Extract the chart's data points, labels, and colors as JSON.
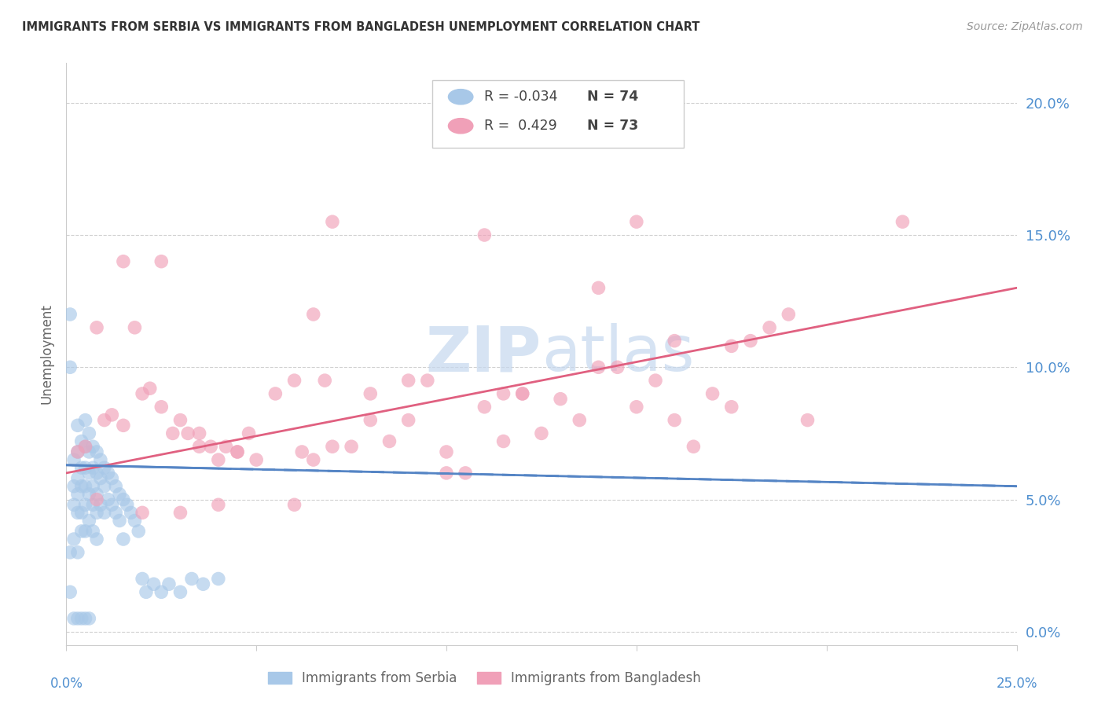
{
  "title": "IMMIGRANTS FROM SERBIA VS IMMIGRANTS FROM BANGLADESH UNEMPLOYMENT CORRELATION CHART",
  "source": "Source: ZipAtlas.com",
  "ylabel": "Unemployment",
  "yticks": [
    0.0,
    0.05,
    0.1,
    0.15,
    0.2
  ],
  "ytick_labels": [
    "0.0%",
    "5.0%",
    "10.0%",
    "15.0%",
    "20.0%"
  ],
  "xlim": [
    0.0,
    0.25
  ],
  "ylim": [
    -0.005,
    0.215
  ],
  "serbia_color": "#a8c8e8",
  "bangladesh_color": "#f0a0b8",
  "serbia_line_color": "#5585c5",
  "bangladesh_line_color": "#e06080",
  "watermark_color": "#c5d8ee",
  "legend_R_serbia": "-0.034",
  "legend_N_serbia": "74",
  "legend_R_bangladesh": "0.429",
  "legend_N_bangladesh": "73",
  "serbia_scatter_x": [
    0.001,
    0.001,
    0.001,
    0.002,
    0.002,
    0.002,
    0.002,
    0.003,
    0.003,
    0.003,
    0.003,
    0.003,
    0.003,
    0.004,
    0.004,
    0.004,
    0.004,
    0.004,
    0.005,
    0.005,
    0.005,
    0.005,
    0.005,
    0.005,
    0.006,
    0.006,
    0.006,
    0.006,
    0.006,
    0.007,
    0.007,
    0.007,
    0.007,
    0.007,
    0.008,
    0.008,
    0.008,
    0.008,
    0.008,
    0.009,
    0.009,
    0.009,
    0.01,
    0.01,
    0.01,
    0.011,
    0.011,
    0.012,
    0.012,
    0.013,
    0.013,
    0.014,
    0.014,
    0.015,
    0.015,
    0.016,
    0.017,
    0.018,
    0.019,
    0.02,
    0.021,
    0.023,
    0.025,
    0.027,
    0.03,
    0.033,
    0.036,
    0.04,
    0.001,
    0.002,
    0.003,
    0.004,
    0.005,
    0.006
  ],
  "serbia_scatter_y": [
    0.12,
    0.1,
    0.03,
    0.065,
    0.055,
    0.048,
    0.035,
    0.078,
    0.068,
    0.058,
    0.052,
    0.045,
    0.03,
    0.072,
    0.062,
    0.055,
    0.045,
    0.038,
    0.08,
    0.07,
    0.062,
    0.055,
    0.048,
    0.038,
    0.075,
    0.068,
    0.06,
    0.052,
    0.042,
    0.07,
    0.062,
    0.055,
    0.048,
    0.038,
    0.068,
    0.06,
    0.052,
    0.045,
    0.035,
    0.065,
    0.058,
    0.048,
    0.062,
    0.055,
    0.045,
    0.06,
    0.05,
    0.058,
    0.048,
    0.055,
    0.045,
    0.052,
    0.042,
    0.05,
    0.035,
    0.048,
    0.045,
    0.042,
    0.038,
    0.02,
    0.015,
    0.018,
    0.015,
    0.018,
    0.015,
    0.02,
    0.018,
    0.02,
    0.015,
    0.005,
    0.005,
    0.005,
    0.005,
    0.005
  ],
  "bangladesh_scatter_x": [
    0.003,
    0.005,
    0.008,
    0.01,
    0.012,
    0.015,
    0.018,
    0.02,
    0.022,
    0.025,
    0.028,
    0.03,
    0.032,
    0.035,
    0.038,
    0.04,
    0.042,
    0.045,
    0.048,
    0.05,
    0.055,
    0.06,
    0.062,
    0.065,
    0.068,
    0.07,
    0.075,
    0.08,
    0.085,
    0.09,
    0.095,
    0.1,
    0.105,
    0.11,
    0.115,
    0.12,
    0.125,
    0.13,
    0.135,
    0.14,
    0.145,
    0.15,
    0.155,
    0.16,
    0.165,
    0.17,
    0.175,
    0.18,
    0.185,
    0.19,
    0.015,
    0.025,
    0.035,
    0.045,
    0.06,
    0.08,
    0.1,
    0.12,
    0.14,
    0.16,
    0.008,
    0.02,
    0.04,
    0.065,
    0.09,
    0.115,
    0.15,
    0.175,
    0.195,
    0.22,
    0.03,
    0.07,
    0.11
  ],
  "bangladesh_scatter_y": [
    0.068,
    0.07,
    0.115,
    0.08,
    0.082,
    0.078,
    0.115,
    0.09,
    0.092,
    0.085,
    0.075,
    0.08,
    0.075,
    0.075,
    0.07,
    0.065,
    0.07,
    0.068,
    0.075,
    0.065,
    0.09,
    0.095,
    0.068,
    0.065,
    0.095,
    0.07,
    0.07,
    0.08,
    0.072,
    0.08,
    0.095,
    0.068,
    0.06,
    0.085,
    0.072,
    0.09,
    0.075,
    0.088,
    0.08,
    0.1,
    0.1,
    0.085,
    0.095,
    0.11,
    0.07,
    0.09,
    0.108,
    0.11,
    0.115,
    0.12,
    0.14,
    0.14,
    0.07,
    0.068,
    0.048,
    0.09,
    0.06,
    0.09,
    0.13,
    0.08,
    0.05,
    0.045,
    0.048,
    0.12,
    0.095,
    0.09,
    0.155,
    0.085,
    0.08,
    0.155,
    0.045,
    0.155,
    0.15
  ],
  "serbia_line": [
    0.0,
    0.25,
    0.063,
    0.055
  ],
  "bangladesh_line": [
    0.0,
    0.25,
    0.06,
    0.13
  ],
  "background_color": "#ffffff",
  "grid_color": "#d0d0d0",
  "tick_color": "#5090d0",
  "title_color": "#333333",
  "source_color": "#999999",
  "ylabel_color": "#666666",
  "legend_text_color": "#444444",
  "bottom_legend_color": "#666666"
}
